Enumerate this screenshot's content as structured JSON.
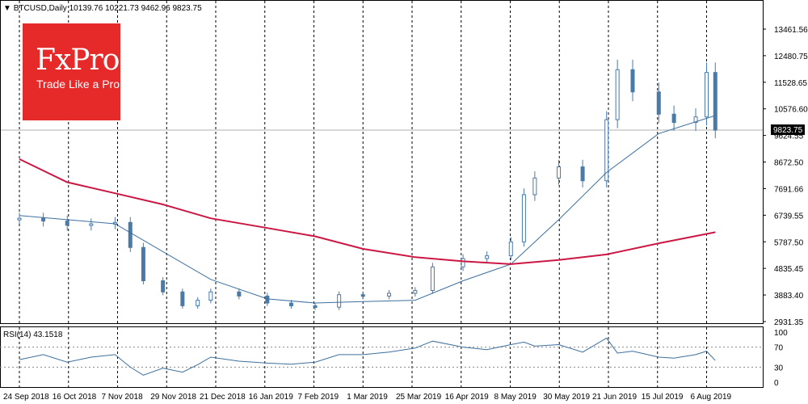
{
  "header": {
    "symbol": "BTCUSD,Daily",
    "ohlc": "10139.76 10221.73 9462.96 9823.75"
  },
  "rsi_header": {
    "label": "RSI(14) 43.1518"
  },
  "logo": {
    "brand": "FxPro",
    "tagline": "Trade Like a Pro",
    "background": "#e62a2a"
  },
  "colors": {
    "candles": "#4a7aa8",
    "ma_fast": "#3d6f9e",
    "ma_slow": "#cc1744",
    "rsi": "#3d6f9e",
    "grid": "#000000",
    "current_price_line": "#b0b0b0"
  },
  "chart_data": [
    {
      "type": "line",
      "title": "BTCUSD,Daily",
      "subtitle": "10139.76 10221.73 9462.96 9823.75",
      "x_tick_labels": [
        "24 Sep 2018",
        "16 Oct 2018",
        "7 Nov 2018",
        "29 Nov 2018",
        "21 Dec 2018",
        "16 Jan 2019",
        "7 Feb 2019",
        "1 Mar 2019",
        "25 Mar 2019",
        "16 Apr 2019",
        "8 May 2019",
        "30 May 2019",
        "21 Jun 2019",
        "15 Jul 2019",
        "6 Aug 2019"
      ],
      "y_tick_labels": [
        "13461.56",
        "12480.75",
        "11528.65",
        "10576.60",
        "9624.55",
        "8672.50",
        "7691.66",
        "6739.55",
        "5787.50",
        "4835.45",
        "3883.40",
        "2931.35"
      ],
      "ylim": [
        2931.35,
        13461.56
      ],
      "current_price": 9823.75,
      "current_price_label": "9823.75",
      "grid": "vertical dashed",
      "series": [
        {
          "name": "BTCUSD",
          "style": "candlestick",
          "x": [
            "2018-09-24",
            "2018-10-05",
            "2018-10-16",
            "2018-10-27",
            "2018-11-07",
            "2018-11-14",
            "2018-11-20",
            "2018-11-29",
            "2018-12-08",
            "2018-12-15",
            "2018-12-21",
            "2019-01-03",
            "2019-01-16",
            "2019-01-27",
            "2019-02-07",
            "2019-02-18",
            "2019-03-01",
            "2019-03-13",
            "2019-03-25",
            "2019-04-02",
            "2019-04-16",
            "2019-04-27",
            "2019-05-08",
            "2019-05-14",
            "2019-05-19",
            "2019-05-30",
            "2019-06-10",
            "2019-06-21",
            "2019-06-26",
            "2019-07-03",
            "2019-07-15",
            "2019-07-22",
            "2019-08-01",
            "2019-08-06",
            "2019-08-10"
          ],
          "values": [
            6650,
            6550,
            6400,
            6450,
            6500,
            5600,
            4400,
            4000,
            3500,
            3700,
            4000,
            3850,
            3600,
            3500,
            3450,
            3900,
            3850,
            3950,
            4050,
            4900,
            5200,
            5300,
            5800,
            7500,
            8100,
            8500,
            8000,
            10200,
            12000,
            11200,
            10400,
            10100,
            10300,
            11900,
            9823.75
          ]
        },
        {
          "name": "MA fast",
          "style": "line",
          "x": [
            "2018-09-24",
            "2018-10-16",
            "2018-11-07",
            "2018-11-29",
            "2018-12-21",
            "2019-01-16",
            "2019-02-07",
            "2019-03-01",
            "2019-03-25",
            "2019-04-16",
            "2019-05-08",
            "2019-05-30",
            "2019-06-21",
            "2019-07-15",
            "2019-08-10"
          ],
          "values": [
            6750,
            6600,
            6450,
            5450,
            4450,
            3750,
            3600,
            3650,
            3700,
            4400,
            5000,
            6600,
            8300,
            9700,
            10350
          ]
        },
        {
          "name": "MA slow",
          "style": "line",
          "x": [
            "2018-09-24",
            "2018-10-16",
            "2018-11-07",
            "2018-11-29",
            "2018-12-21",
            "2019-01-16",
            "2019-02-07",
            "2019-03-01",
            "2019-03-25",
            "2019-04-16",
            "2019-05-08",
            "2019-05-30",
            "2019-06-21",
            "2019-07-15",
            "2019-08-10"
          ],
          "values": [
            8780,
            7950,
            7550,
            7150,
            6650,
            6300,
            6000,
            5550,
            5250,
            5100,
            5000,
            5150,
            5350,
            5750,
            6150
          ]
        }
      ]
    },
    {
      "type": "line",
      "title": "RSI(14) 43.1518",
      "ylim": [
        0,
        100
      ],
      "y_tick_labels": [
        "100",
        "70",
        "30",
        "0"
      ],
      "levels": [
        70,
        30
      ],
      "series": [
        {
          "name": "RSI(14)",
          "x": [
            "2018-09-24",
            "2018-10-05",
            "2018-10-16",
            "2018-10-27",
            "2018-11-07",
            "2018-11-14",
            "2018-11-20",
            "2018-11-29",
            "2018-12-08",
            "2018-12-15",
            "2018-12-21",
            "2019-01-03",
            "2019-01-16",
            "2019-01-27",
            "2019-02-07",
            "2019-02-18",
            "2019-03-01",
            "2019-03-13",
            "2019-03-25",
            "2019-04-02",
            "2019-04-16",
            "2019-04-27",
            "2019-05-08",
            "2019-05-14",
            "2019-05-19",
            "2019-05-30",
            "2019-06-10",
            "2019-06-21",
            "2019-06-26",
            "2019-07-03",
            "2019-07-15",
            "2019-07-22",
            "2019-08-01",
            "2019-08-06",
            "2019-08-10"
          ],
          "values": [
            45,
            55,
            40,
            50,
            55,
            30,
            14,
            28,
            20,
            35,
            50,
            42,
            38,
            36,
            40,
            55,
            55,
            60,
            68,
            82,
            70,
            65,
            75,
            80,
            72,
            75,
            60,
            88,
            58,
            62,
            50,
            48,
            55,
            62,
            43.15
          ]
        }
      ]
    }
  ]
}
